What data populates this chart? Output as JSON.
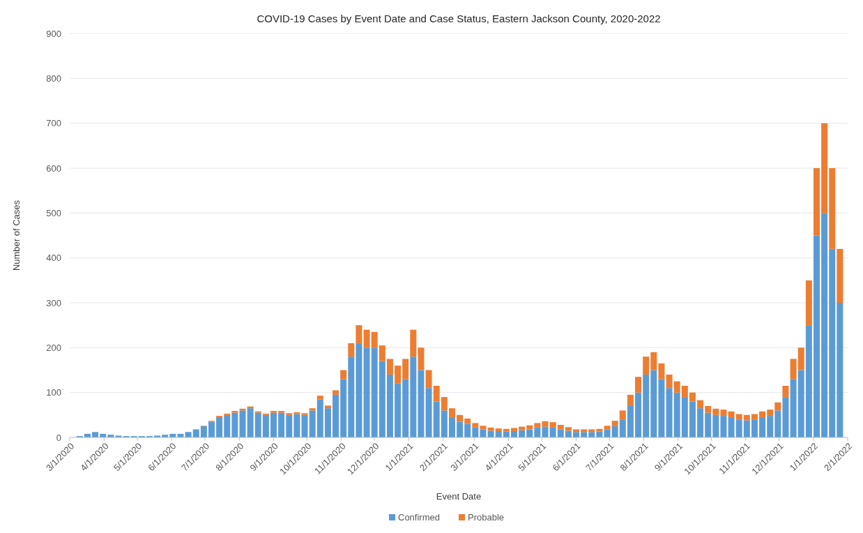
{
  "chart_data": {
    "type": "bar",
    "stacked": true,
    "title": "COVID-19 Cases by Event Date and Case Status, Eastern Jackson County, 2020-2022",
    "xlabel": "Event Date",
    "ylabel": "Number of Cases",
    "x": [
      "2020-03-03",
      "2020-03-10",
      "2020-03-17",
      "2020-03-24",
      "2020-03-31",
      "2020-04-07",
      "2020-04-14",
      "2020-04-21",
      "2020-04-28",
      "2020-05-05",
      "2020-05-12",
      "2020-05-19",
      "2020-05-26",
      "2020-06-02",
      "2020-06-09",
      "2020-06-16",
      "2020-06-23",
      "2020-06-30",
      "2020-07-07",
      "2020-07-14",
      "2020-07-21",
      "2020-07-28",
      "2020-08-04",
      "2020-08-11",
      "2020-08-18",
      "2020-08-25",
      "2020-09-01",
      "2020-09-08",
      "2020-09-15",
      "2020-09-22",
      "2020-09-29",
      "2020-10-06",
      "2020-10-13",
      "2020-10-20",
      "2020-10-27",
      "2020-11-03",
      "2020-11-10",
      "2020-11-17",
      "2020-11-24",
      "2020-12-01",
      "2020-12-08",
      "2020-12-15",
      "2020-12-22",
      "2020-12-29",
      "2021-01-05",
      "2021-01-12",
      "2021-01-19",
      "2021-01-26",
      "2021-02-02",
      "2021-02-09",
      "2021-02-16",
      "2021-02-23",
      "2021-03-02",
      "2021-03-09",
      "2021-03-16",
      "2021-03-23",
      "2021-03-30",
      "2021-04-06",
      "2021-04-13",
      "2021-04-20",
      "2021-04-27",
      "2021-05-04",
      "2021-05-11",
      "2021-05-18",
      "2021-05-25",
      "2021-06-01",
      "2021-06-08",
      "2021-06-15",
      "2021-06-22",
      "2021-06-29",
      "2021-07-06",
      "2021-07-13",
      "2021-07-20",
      "2021-07-27",
      "2021-08-03",
      "2021-08-10",
      "2021-08-17",
      "2021-08-24",
      "2021-08-31",
      "2021-09-07",
      "2021-09-14",
      "2021-09-21",
      "2021-09-28",
      "2021-10-05",
      "2021-10-12",
      "2021-10-19",
      "2021-10-26",
      "2021-11-02",
      "2021-11-09",
      "2021-11-16",
      "2021-11-23",
      "2021-11-30",
      "2021-12-07",
      "2021-12-14",
      "2021-12-21",
      "2021-12-28",
      "2022-01-04",
      "2022-01-11",
      "2022-01-18",
      "2022-01-25"
    ],
    "series": [
      {
        "name": "Confirmed",
        "color": "#5b9bd5",
        "values": [
          0,
          3,
          8,
          12,
          8,
          6,
          4,
          3,
          3,
          3,
          3,
          4,
          6,
          8,
          8,
          12,
          18,
          25,
          35,
          45,
          50,
          55,
          60,
          65,
          55,
          50,
          55,
          55,
          50,
          52,
          50,
          60,
          85,
          65,
          95,
          130,
          180,
          210,
          200,
          200,
          170,
          140,
          120,
          130,
          180,
          150,
          110,
          80,
          60,
          45,
          35,
          30,
          22,
          18,
          15,
          14,
          13,
          14,
          16,
          18,
          22,
          24,
          22,
          18,
          15,
          12,
          12,
          12,
          13,
          18,
          25,
          40,
          70,
          100,
          140,
          150,
          130,
          110,
          100,
          90,
          80,
          65,
          55,
          50,
          48,
          45,
          40,
          38,
          40,
          45,
          48,
          60,
          90,
          130,
          150,
          250,
          450,
          500,
          420,
          300
        ]
      },
      {
        "name": "Probable",
        "color": "#ed7d31",
        "values": [
          0,
          0,
          0,
          0,
          0,
          0,
          0,
          0,
          0,
          0,
          0,
          0,
          0,
          0,
          0,
          0,
          0,
          1,
          2,
          3,
          3,
          4,
          4,
          4,
          3,
          3,
          4,
          4,
          4,
          4,
          4,
          5,
          8,
          6,
          10,
          20,
          30,
          40,
          40,
          35,
          35,
          35,
          40,
          45,
          60,
          50,
          40,
          35,
          30,
          20,
          15,
          12,
          10,
          8,
          7,
          6,
          6,
          7,
          8,
          9,
          10,
          12,
          12,
          10,
          8,
          6,
          6,
          6,
          6,
          8,
          12,
          20,
          25,
          35,
          40,
          40,
          35,
          30,
          25,
          25,
          20,
          18,
          15,
          14,
          14,
          13,
          12,
          12,
          12,
          13,
          14,
          18,
          25,
          45,
          50,
          100,
          150,
          200,
          180,
          120
        ]
      }
    ],
    "xlim": [
      "2020-03-01",
      "2022-02-01"
    ],
    "xticks": [
      {
        "value": "2020-03-01",
        "label": "3/1/2020"
      },
      {
        "value": "2020-04-01",
        "label": "4/1/2020"
      },
      {
        "value": "2020-05-01",
        "label": "5/1/2020"
      },
      {
        "value": "2020-06-01",
        "label": "6/1/2020"
      },
      {
        "value": "2020-07-01",
        "label": "7/1/2020"
      },
      {
        "value": "2020-08-01",
        "label": "8/1/2020"
      },
      {
        "value": "2020-09-01",
        "label": "9/1/2020"
      },
      {
        "value": "2020-10-01",
        "label": "10/1/2020"
      },
      {
        "value": "2020-11-01",
        "label": "11/1/2020"
      },
      {
        "value": "2020-12-01",
        "label": "12/1/2020"
      },
      {
        "value": "2021-01-01",
        "label": "1/1/2021"
      },
      {
        "value": "2021-02-01",
        "label": "2/1/2021"
      },
      {
        "value": "2021-03-01",
        "label": "3/1/2021"
      },
      {
        "value": "2021-04-01",
        "label": "4/1/2021"
      },
      {
        "value": "2021-05-01",
        "label": "5/1/2021"
      },
      {
        "value": "2021-06-01",
        "label": "6/1/2021"
      },
      {
        "value": "2021-07-01",
        "label": "7/1/2021"
      },
      {
        "value": "2021-08-01",
        "label": "8/1/2021"
      },
      {
        "value": "2021-09-01",
        "label": "9/1/2021"
      },
      {
        "value": "2021-10-01",
        "label": "10/1/2021"
      },
      {
        "value": "2021-11-01",
        "label": "11/1/2021"
      },
      {
        "value": "2021-12-01",
        "label": "12/1/2021"
      },
      {
        "value": "2022-01-01",
        "label": "1/1/2022"
      },
      {
        "value": "2022-02-01",
        "label": "2/1/2022"
      }
    ],
    "ylim": [
      0,
      900
    ],
    "yticks": [
      0,
      100,
      200,
      300,
      400,
      500,
      600,
      700,
      800,
      900
    ],
    "grid": "y",
    "legend": "bottom"
  }
}
